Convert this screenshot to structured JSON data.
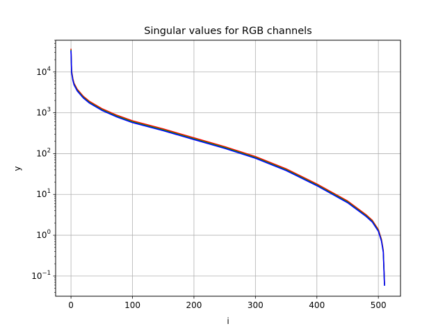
{
  "chart_data": {
    "type": "line",
    "title": "Singular values for RGB channels",
    "xlabel": "i",
    "ylabel": "y",
    "yscale": "log",
    "xlim": [
      -25,
      536
    ],
    "ylim": [
      0.032,
      60000
    ],
    "grid": true,
    "x_ticks": [
      0,
      100,
      200,
      300,
      400,
      500
    ],
    "y_ticks": [
      {
        "value": 0.1,
        "base": "10",
        "exp": "−1"
      },
      {
        "value": 1,
        "base": "10",
        "exp": "0"
      },
      {
        "value": 10,
        "base": "10",
        "exp": "1"
      },
      {
        "value": 100,
        "base": "10",
        "exp": "2"
      },
      {
        "value": 1000,
        "base": "10",
        "exp": "3"
      },
      {
        "value": 10000,
        "base": "10",
        "exp": "4"
      }
    ],
    "colors": [
      "#ff0000",
      "#00aa00",
      "#0000ff"
    ],
    "curve": [
      [
        0,
        35000
      ],
      [
        1,
        10000
      ],
      [
        3,
        6500
      ],
      [
        5,
        5000
      ],
      [
        10,
        3600
      ],
      [
        20,
        2400
      ],
      [
        30,
        1800
      ],
      [
        50,
        1200
      ],
      [
        75,
        820
      ],
      [
        100,
        600
      ],
      [
        150,
        380
      ],
      [
        200,
        230
      ],
      [
        250,
        140
      ],
      [
        300,
        80
      ],
      [
        350,
        40
      ],
      [
        400,
        17
      ],
      [
        450,
        6.5
      ],
      [
        480,
        3.0
      ],
      [
        490,
        2.2
      ],
      [
        500,
        1.3
      ],
      [
        505,
        0.75
      ],
      [
        508,
        0.4
      ],
      [
        510,
        0.06
      ]
    ]
  }
}
